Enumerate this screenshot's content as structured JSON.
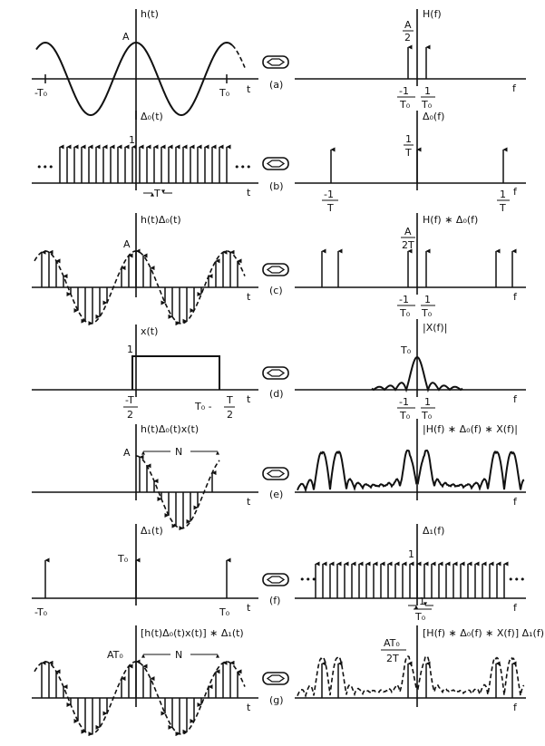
{
  "rows": [
    {
      "id": "a",
      "panel_label": "(a)",
      "left": {
        "ylabel": "h(t)",
        "amp": "A",
        "neg_tick": "-T₀",
        "pos_tick": "T₀",
        "xaxis": "t"
      },
      "right": {
        "ylabel": "H(f)",
        "amp_num": "A",
        "amp_den": "2",
        "lt_num": "-1",
        "lt_den": "T₀",
        "rt_num": "1",
        "rt_den": "T₀",
        "xaxis": "f"
      }
    },
    {
      "id": "b",
      "panel_label": "(b)",
      "left": {
        "ylabel": "Δ₀(t)",
        "amp": "1",
        "period": "T",
        "dots": "•••",
        "xaxis": "t"
      },
      "right": {
        "ylabel": "Δ₀(f)",
        "amp_num": "1",
        "amp_den": "T",
        "lt_num": "-1",
        "lt_den": "T",
        "rt_num": "1",
        "rt_den": "T",
        "xaxis": "f"
      }
    },
    {
      "id": "c",
      "panel_label": "(c)",
      "left": {
        "ylabel": "h(t)Δ₀(t)",
        "amp": "A",
        "xaxis": "t"
      },
      "right": {
        "ylabel": "H(f) ∗ Δ₀(f)",
        "amp_num": "A",
        "amp_den": "2T",
        "lt_num": "-1",
        "lt_den": "T₀",
        "rt_num": "1",
        "rt_den": "T₀",
        "xaxis": "f"
      }
    },
    {
      "id": "d",
      "panel_label": "(d)",
      "left": {
        "ylabel": "x(t)",
        "amp": "1",
        "lt_num": "-T",
        "lt_den": "2",
        "rt_pre": "T₀ -",
        "rt_num": "T",
        "rt_den": "2",
        "xaxis": "t"
      },
      "right": {
        "ylabel": "|X(f)|",
        "amp": "T₀",
        "lt_num": "-1",
        "lt_den": "T₀",
        "rt_num": "1",
        "rt_den": "T₀",
        "xaxis": "f"
      }
    },
    {
      "id": "e",
      "panel_label": "(e)",
      "left": {
        "ylabel": "h(t)Δ₀(t)x(t)",
        "amp": "A",
        "span": "N",
        "xaxis": "t"
      },
      "right": {
        "ylabel": "|H(f) ∗ Δ₀(f) ∗ X(f)|",
        "xaxis": "f"
      }
    },
    {
      "id": "f",
      "panel_label": "(f)",
      "left": {
        "ylabel": "Δ₁(t)",
        "amp": "T₀",
        "neg_tick": "-T₀",
        "pos_tick": "T₀",
        "xaxis": "t"
      },
      "right": {
        "ylabel": "Δ₁(f)",
        "amp": "1",
        "dots": "•••",
        "period_num": "1",
        "period_den": "T₀",
        "xaxis": "f"
      }
    },
    {
      "id": "g",
      "panel_label": "(g)",
      "left": {
        "ylabel": "[h(t)Δ₀(t)x(t)] ∗ Δ₁(t)",
        "amp": "AT₀",
        "span": "N",
        "xaxis": "t"
      },
      "right": {
        "ylabel": "[H(f) ∗ Δ₀(f) ∗ X(f)] Δ₁(f)",
        "amp_num": "AT₀",
        "amp_den": "2T",
        "xaxis": "f"
      }
    }
  ],
  "transform_symbol": "double-arrow-icon"
}
